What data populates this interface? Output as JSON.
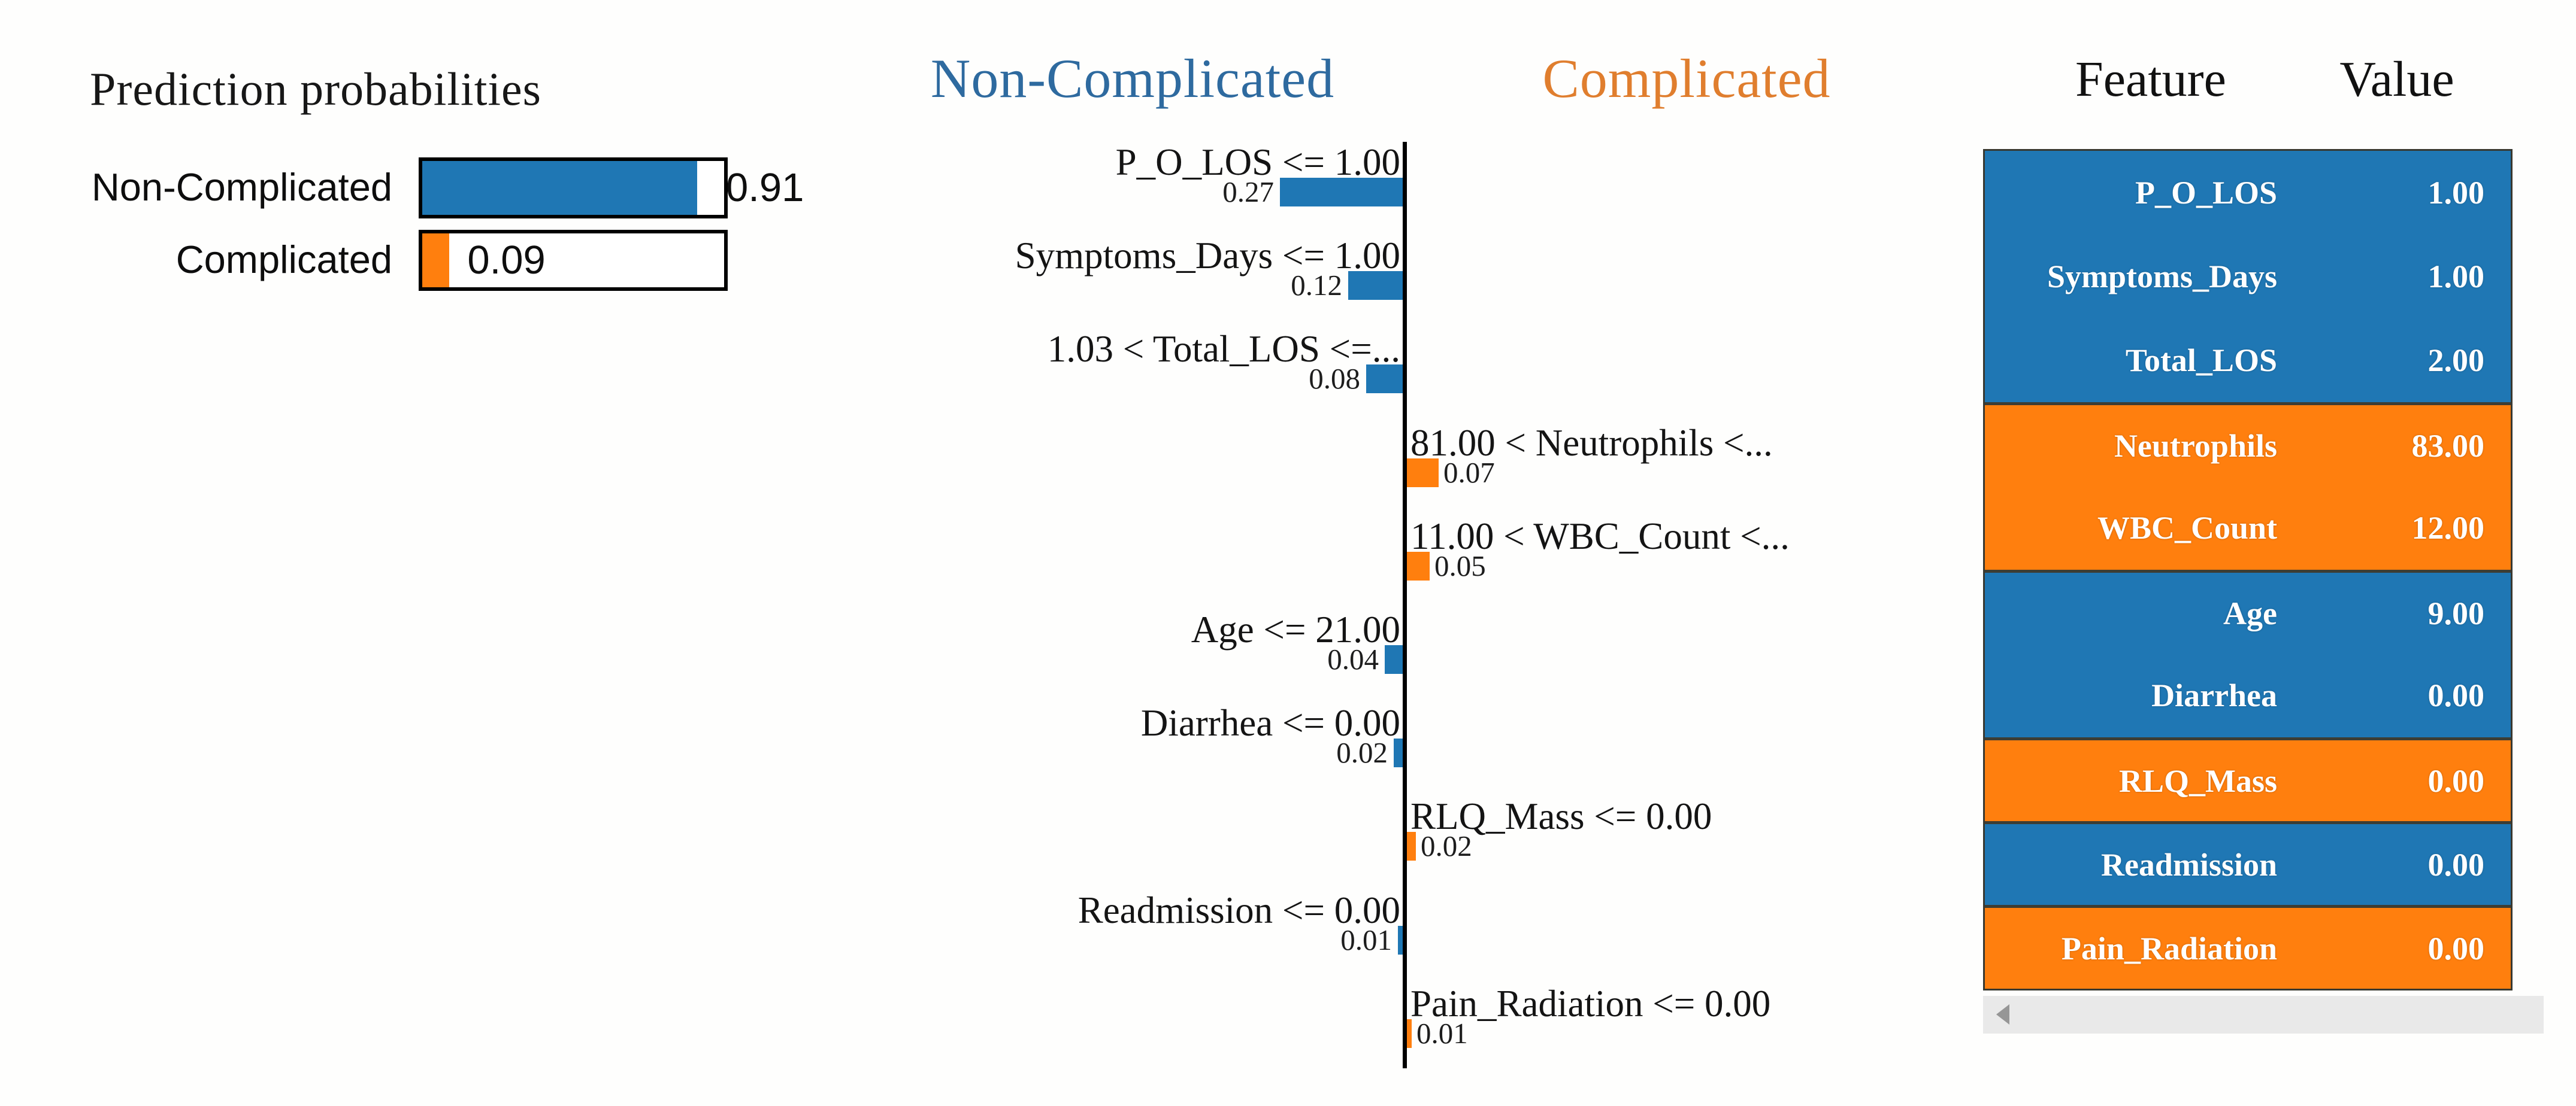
{
  "colors": {
    "blue": "#1f77b4",
    "orange": "#ff7f0e",
    "header_blue": "#2e6a9f",
    "header_orange": "#e07e2e"
  },
  "prediction_panel": {
    "title": "Prediction probabilities",
    "bars": [
      {
        "label": "Non-Complicated",
        "value": "0.91",
        "fraction": 0.91,
        "color": "blue",
        "value_position": "outside"
      },
      {
        "label": "Complicated",
        "value": "0.09",
        "fraction": 0.09,
        "color": "orange",
        "value_position": "inside"
      }
    ]
  },
  "contribution_plot": {
    "left_header": "Non-Complicated",
    "right_header": "Complicated",
    "rows": [
      {
        "label": "P_O_LOS <= 1.00",
        "value": "0.27",
        "weight": 0.27,
        "side": "left"
      },
      {
        "label": "Symptoms_Days <= 1.00",
        "value": "0.12",
        "weight": 0.12,
        "side": "left"
      },
      {
        "label": "1.03 < Total_LOS <=...",
        "value": "0.08",
        "weight": 0.08,
        "side": "left"
      },
      {
        "label": "81.00 < Neutrophils <...",
        "value": "0.07",
        "weight": 0.07,
        "side": "right"
      },
      {
        "label": "11.00 < WBC_Count <...",
        "value": "0.05",
        "weight": 0.05,
        "side": "right"
      },
      {
        "label": "Age <= 21.00",
        "value": "0.04",
        "weight": 0.04,
        "side": "left"
      },
      {
        "label": "Diarrhea <= 0.00",
        "value": "0.02",
        "weight": 0.02,
        "side": "left"
      },
      {
        "label": "RLQ_Mass <= 0.00",
        "value": "0.02",
        "weight": 0.02,
        "side": "right"
      },
      {
        "label": "Readmission <= 0.00",
        "value": "0.01",
        "weight": 0.01,
        "side": "left"
      },
      {
        "label": "Pain_Radiation <= 0.00",
        "value": "0.01",
        "weight": 0.01,
        "side": "right"
      }
    ]
  },
  "feature_table": {
    "columns": [
      "Feature",
      "Value"
    ],
    "rows": [
      {
        "feature": "P_O_LOS",
        "value": "1.00",
        "color": "blue",
        "group_start": false
      },
      {
        "feature": "Symptoms_Days",
        "value": "1.00",
        "color": "blue",
        "group_start": false
      },
      {
        "feature": "Total_LOS",
        "value": "2.00",
        "color": "blue",
        "group_start": false
      },
      {
        "feature": "Neutrophils",
        "value": "83.00",
        "color": "orange",
        "group_start": true
      },
      {
        "feature": "WBC_Count",
        "value": "12.00",
        "color": "orange",
        "group_start": false
      },
      {
        "feature": "Age",
        "value": "9.00",
        "color": "blue",
        "group_start": true
      },
      {
        "feature": "Diarrhea",
        "value": "0.00",
        "color": "blue",
        "group_start": false
      },
      {
        "feature": "RLQ_Mass",
        "value": "0.00",
        "color": "orange",
        "group_start": true
      },
      {
        "feature": "Readmission",
        "value": "0.00",
        "color": "blue",
        "group_start": true
      },
      {
        "feature": "Pain_Radiation",
        "value": "0.00",
        "color": "orange",
        "group_start": true
      }
    ]
  },
  "chart_data": [
    {
      "type": "bar",
      "title": "Prediction probabilities",
      "orientation": "horizontal",
      "categories": [
        "Non-Complicated",
        "Complicated"
      ],
      "values": [
        0.91,
        0.09
      ],
      "colors": [
        "#1f77b4",
        "#ff7f0e"
      ],
      "xlim": [
        0,
        1
      ],
      "grid": false
    },
    {
      "type": "bar",
      "title": "LIME local feature contributions",
      "orientation": "horizontal",
      "categories": [
        "P_O_LOS <= 1.00",
        "Symptoms_Days <= 1.00",
        "1.03 < Total_LOS <=...",
        "81.00 < Neutrophils <...",
        "11.00 < WBC_Count <...",
        "Age <= 21.00",
        "Diarrhea <= 0.00",
        "RLQ_Mass <= 0.00",
        "Readmission <= 0.00",
        "Pain_Radiation <= 0.00"
      ],
      "series": [
        {
          "name": "Non-Complicated",
          "values": [
            0.27,
            0.12,
            0.08,
            null,
            null,
            0.04,
            0.02,
            null,
            0.01,
            null
          ]
        },
        {
          "name": "Complicated",
          "values": [
            null,
            null,
            null,
            0.07,
            0.05,
            null,
            null,
            0.02,
            null,
            0.01
          ]
        }
      ],
      "legend_position": "top",
      "grid": false
    },
    {
      "type": "table",
      "columns": [
        "Feature",
        "Value"
      ],
      "rows": [
        [
          "P_O_LOS",
          "1.00"
        ],
        [
          "Symptoms_Days",
          "1.00"
        ],
        [
          "Total_LOS",
          "2.00"
        ],
        [
          "Neutrophils",
          "83.00"
        ],
        [
          "WBC_Count",
          "12.00"
        ],
        [
          "Age",
          "9.00"
        ],
        [
          "Diarrhea",
          "0.00"
        ],
        [
          "RLQ_Mass",
          "0.00"
        ],
        [
          "Readmission",
          "0.00"
        ],
        [
          "Pain_Radiation",
          "0.00"
        ]
      ]
    }
  ]
}
